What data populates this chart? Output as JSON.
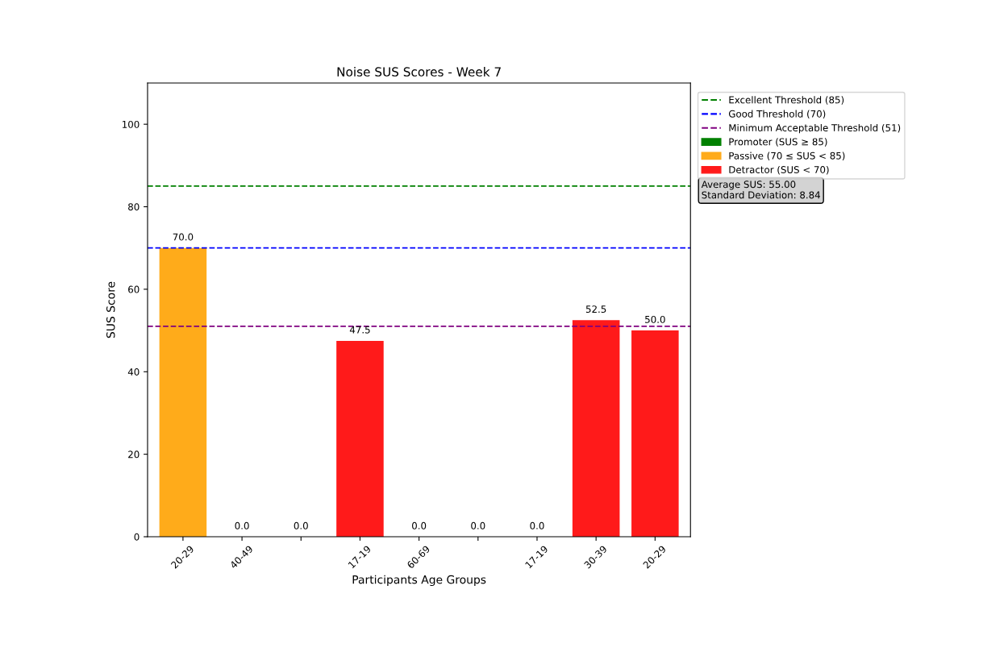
{
  "chart_data": {
    "type": "bar",
    "title": "Noise SUS Scores - Week 7",
    "xlabel": "Participants Age Groups",
    "ylabel": "SUS Score",
    "categories": [
      "20-29",
      "40-49",
      null,
      "17-19",
      "60-69",
      null,
      "17-19",
      "30-39",
      "20-29"
    ],
    "series": [
      {
        "name": "Promoter (SUS ≥ 85)",
        "color": "#008000",
        "values": [
          null,
          null,
          null,
          null,
          null,
          null,
          null,
          null,
          null
        ]
      },
      {
        "name": "Passive (70 ≤ SUS < 85)",
        "color": "#ffab1a",
        "values": [
          70,
          null,
          null,
          null,
          null,
          null,
          null,
          null,
          null
        ],
        "value_labels": [
          "70.0",
          null,
          null,
          null,
          null,
          null,
          null,
          null,
          null
        ]
      },
      {
        "name": "Detractor (SUS < 70)",
        "color": "#ff1a1a",
        "values": [
          null,
          0,
          0,
          47.5,
          0,
          0,
          0,
          52.5,
          50
        ],
        "value_labels": [
          null,
          "0.0",
          "0.0",
          "47.5",
          "0.0",
          "0.0",
          "0.0",
          "52.5",
          "50.0"
        ]
      }
    ],
    "ref_lines": [
      {
        "axis": "y",
        "value": 85,
        "label": "Excellent Threshold (85)",
        "color": "#008000",
        "line_style": "dashed"
      },
      {
        "axis": "y",
        "value": 70,
        "label": "Good Threshold (70)",
        "color": "#0000ff",
        "line_style": "dashed"
      },
      {
        "axis": "y",
        "value": 51,
        "label": "Minimum Acceptable Threshold (51)",
        "color": "#800080",
        "line_style": "dashed"
      }
    ],
    "annotations": [
      "Average SUS: 55.00\nStandard Deviation: 8.84"
    ],
    "ylim": [
      0,
      110
    ],
    "yticks": [
      0,
      20,
      40,
      60,
      80,
      100
    ],
    "grid": false,
    "legend": "top right"
  }
}
